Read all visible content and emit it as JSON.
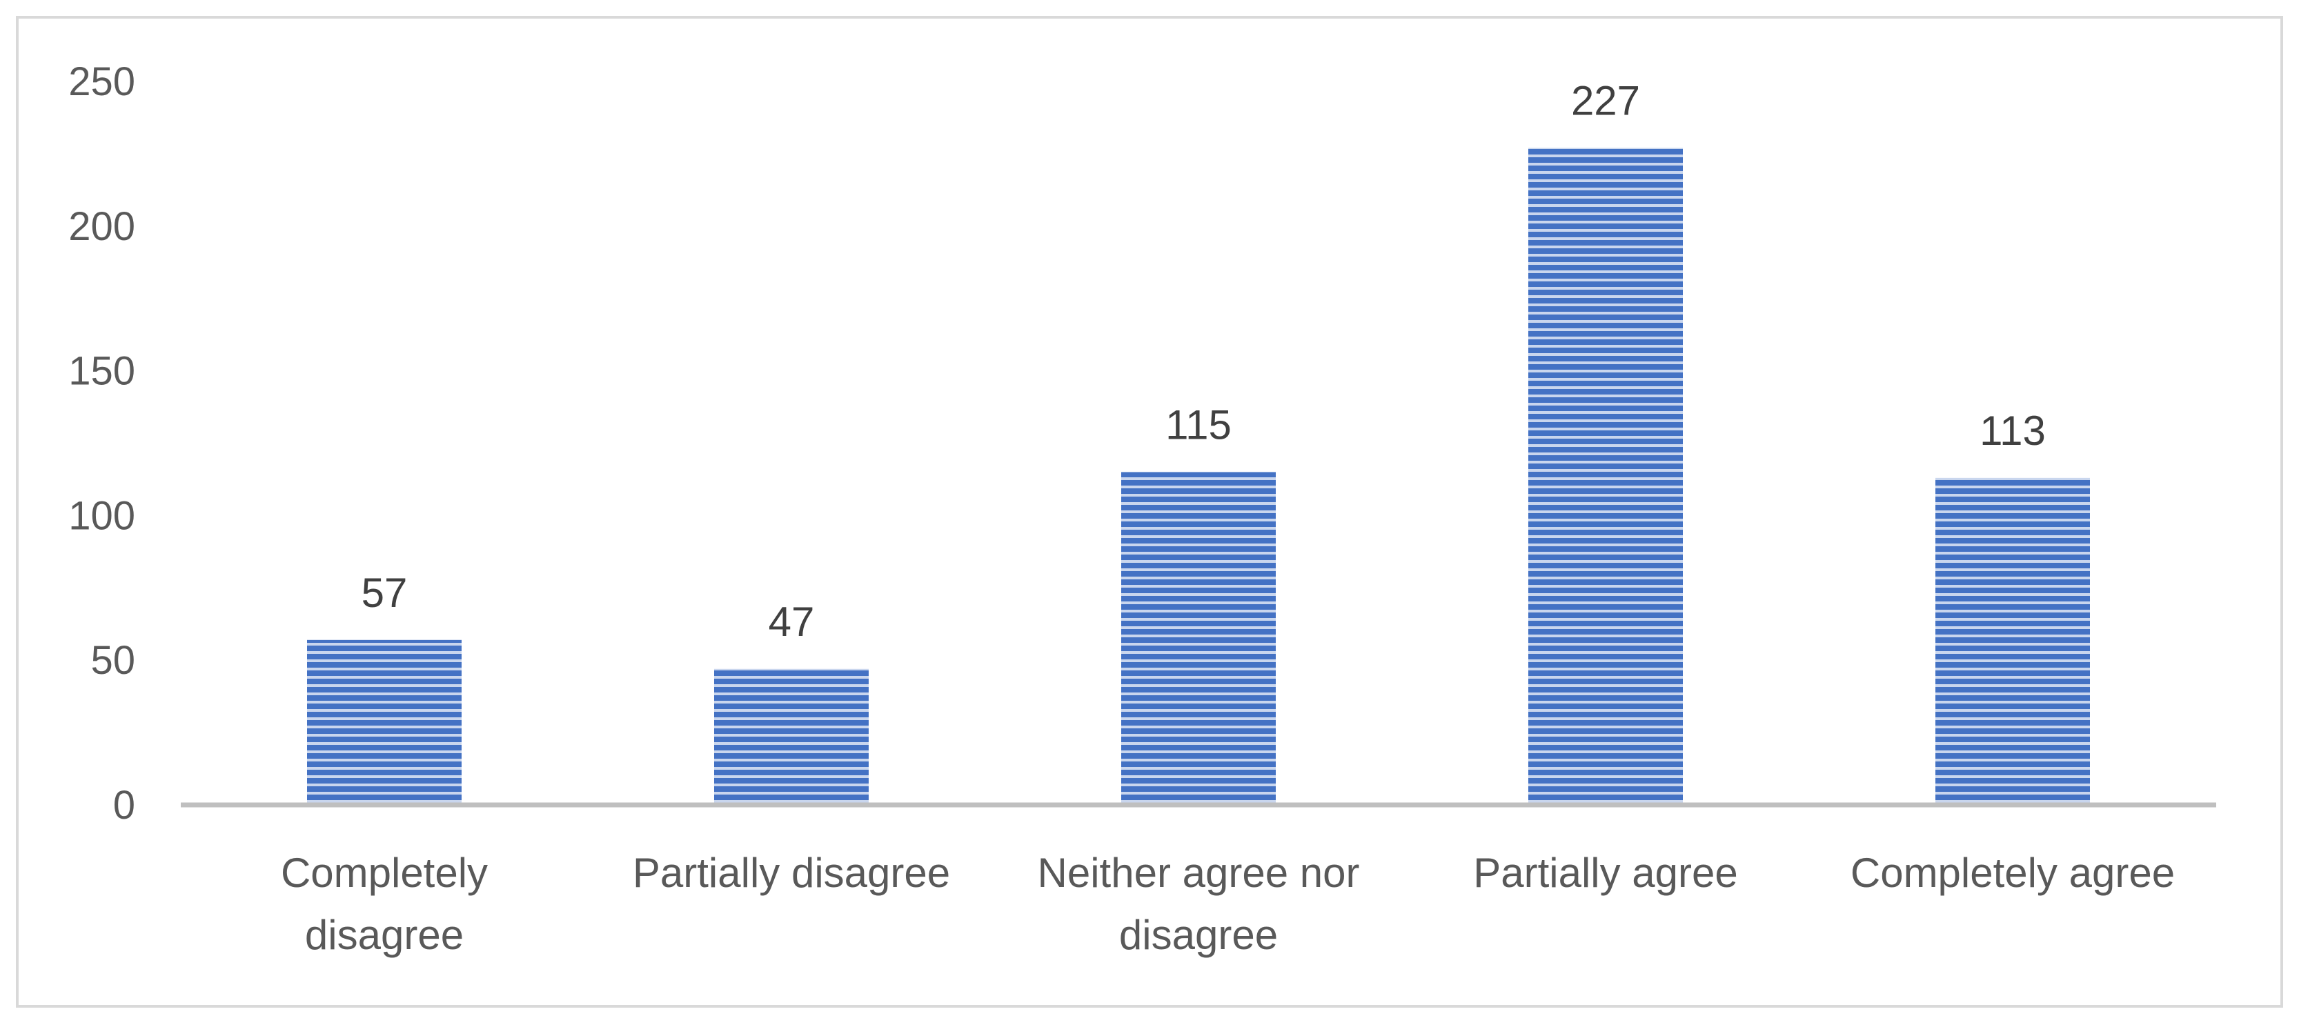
{
  "chart_data": {
    "type": "bar",
    "title": "",
    "xlabel": "",
    "ylabel": "",
    "categories": [
      [
        "Completely",
        "disagree"
      ],
      [
        "Partially disagree"
      ],
      [
        "Neither agree nor",
        "disagree"
      ],
      [
        "Partially agree"
      ],
      [
        "Completely agree"
      ]
    ],
    "values": [
      57,
      47,
      115,
      227,
      113
    ],
    "data_labels": [
      "57",
      "47",
      "115",
      "227",
      "113"
    ],
    "ylim": [
      0,
      250
    ],
    "yticks": [
      0,
      50,
      100,
      150,
      200,
      250
    ],
    "grid": false,
    "legend": "none",
    "bar_pattern": "horizontal-stripes",
    "colors": {
      "bar_fill": "#4472c4",
      "bar_stripe_light": "#c9d6ee",
      "axis_line": "#bfbfbf",
      "frame": "#d9d9d9",
      "tick_text": "#595959",
      "data_label_text": "#404040"
    }
  }
}
